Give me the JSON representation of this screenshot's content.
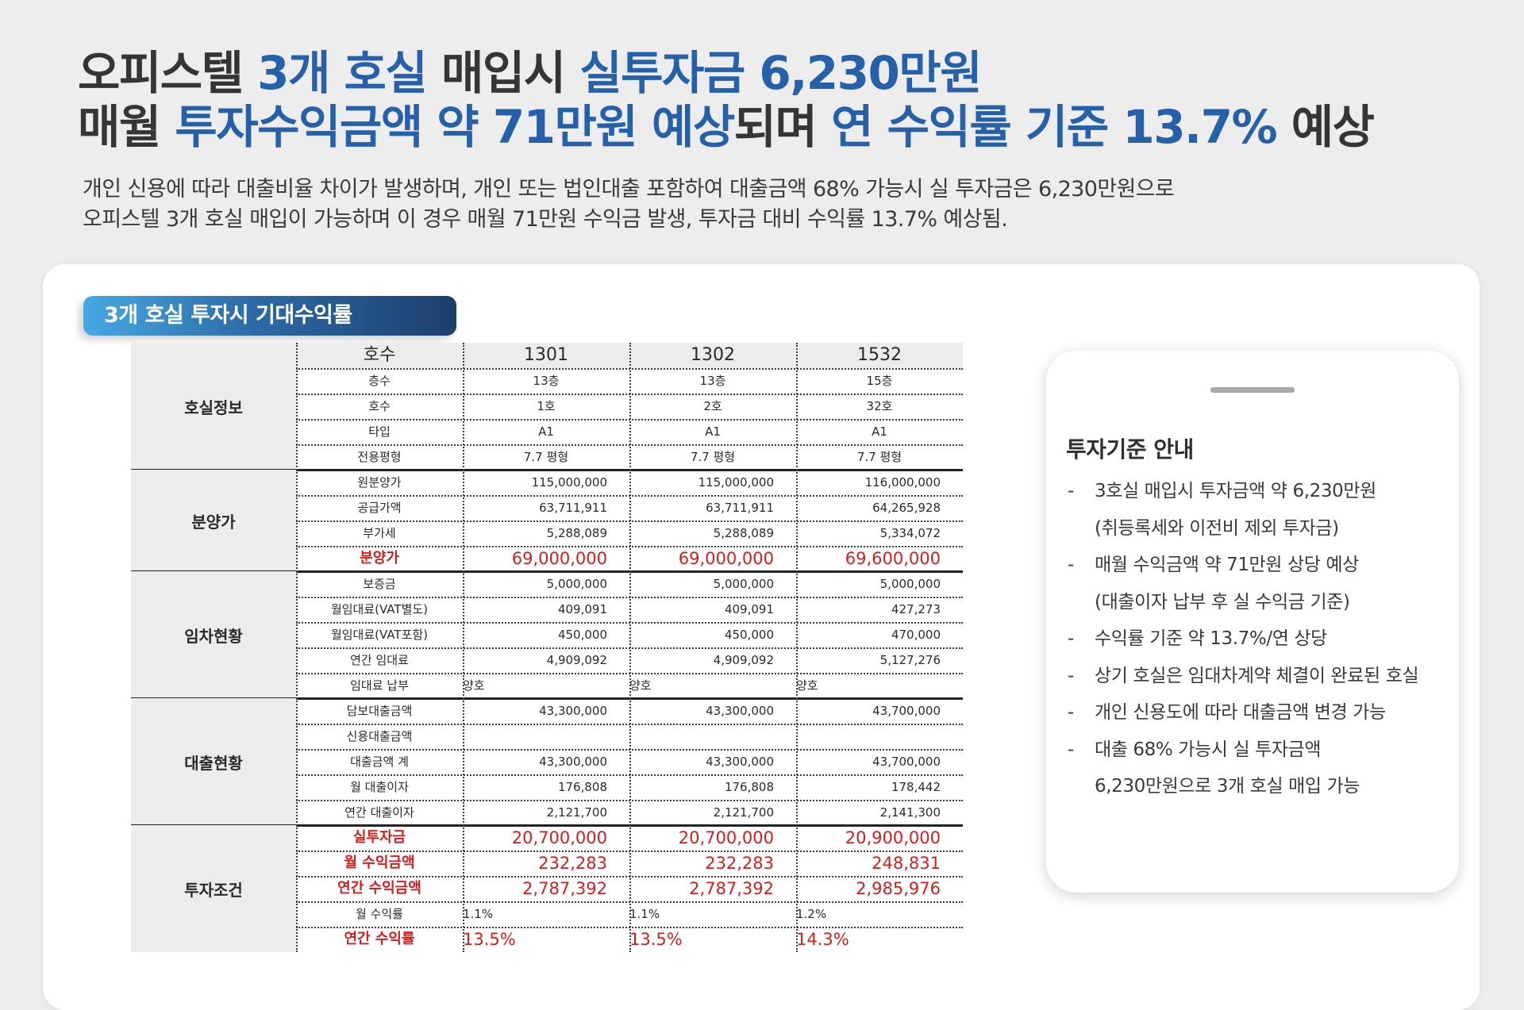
{
  "headline": {
    "line1": [
      {
        "text": "오피스텔 ",
        "blue": false
      },
      {
        "text": "3개 호실",
        "blue": true
      },
      {
        "text": " 매입시 ",
        "blue": false
      },
      {
        "text": "실투자금 6,230만원",
        "blue": true
      }
    ],
    "line2": [
      {
        "text": "매월 ",
        "blue": false
      },
      {
        "text": "투자수익금액 약 71만원 예상",
        "blue": true
      },
      {
        "text": "되며 ",
        "blue": false
      },
      {
        "text": "연 수익률 기준 13.7%",
        "blue": true
      },
      {
        "text": " 예상",
        "blue": false
      }
    ]
  },
  "subtitle": {
    "line1": "개인 신용에 따라 대출비율 차이가 발생하며, 개인 또는 법인대출 포함하여 대출금액 68% 가능시 실 투자금은 6,230만원으로",
    "line2": "오피스텔 3개 호실 매입이 가능하며 이 경우 매월 71만원 수익금 발생, 투자금 대비 수익률 13.7% 예상됨."
  },
  "section_title": "3개 호실 투자시 기대수익률",
  "table": {
    "header": {
      "label": "호수",
      "units": [
        "1301",
        "1302",
        "1532"
      ]
    },
    "groups": [
      {
        "name": "호실정보",
        "rows": [
          {
            "label": "층수",
            "values": [
              "13층",
              "13층",
              "15층"
            ],
            "align": "center"
          },
          {
            "label": "호수",
            "values": [
              "1호",
              "2호",
              "32호"
            ],
            "align": "center"
          },
          {
            "label": "타입",
            "values": [
              "A1",
              "A1",
              "A1"
            ],
            "align": "center"
          },
          {
            "label": "전용평형",
            "values": [
              "7.7 평형",
              "7.7 평형",
              "7.7 평형"
            ],
            "align": "center"
          }
        ]
      },
      {
        "name": "분양가",
        "rows": [
          {
            "label": "원분양가",
            "values": [
              "115,000,000",
              "115,000,000",
              "116,000,000"
            ],
            "align": "right"
          },
          {
            "label": "공급가액",
            "values": [
              "63,711,911",
              "63,711,911",
              "64,265,928"
            ],
            "align": "right"
          },
          {
            "label": "부가세",
            "values": [
              "5,288,089",
              "5,288,089",
              "5,334,072"
            ],
            "align": "right"
          },
          {
            "label": "분양가",
            "values": [
              "69,000,000",
              "69,000,000",
              "69,600,000"
            ],
            "align": "right",
            "highlight": true
          }
        ]
      },
      {
        "name": "임차현황",
        "rows": [
          {
            "label": "보증금",
            "values": [
              "5,000,000",
              "5,000,000",
              "5,000,000"
            ],
            "align": "right"
          },
          {
            "label": "월임대료(VAT별도)",
            "values": [
              "409,091",
              "409,091",
              "427,273"
            ],
            "align": "right"
          },
          {
            "label": "월임대료(VAT포함)",
            "values": [
              "450,000",
              "450,000",
              "470,000"
            ],
            "align": "right"
          },
          {
            "label": "연간 임대료",
            "values": [
              "4,909,092",
              "4,909,092",
              "5,127,276"
            ],
            "align": "right"
          },
          {
            "label": "임대료 납부",
            "values": [
              "양호",
              "양호",
              "양호"
            ],
            "align": "left"
          }
        ]
      },
      {
        "name": "대출현황",
        "rows": [
          {
            "label": "담보대출금액",
            "values": [
              "43,300,000",
              "43,300,000",
              "43,700,000"
            ],
            "align": "right"
          },
          {
            "label": "신용대출금액",
            "values": [
              "",
              "",
              ""
            ],
            "align": "right"
          },
          {
            "label": "대출금액 계",
            "values": [
              "43,300,000",
              "43,300,000",
              "43,700,000"
            ],
            "align": "right"
          },
          {
            "label": "월 대출이자",
            "values": [
              "176,808",
              "176,808",
              "178,442"
            ],
            "align": "right"
          },
          {
            "label": "연간 대출이자",
            "values": [
              "2,121,700",
              "2,121,700",
              "2,141,300"
            ],
            "align": "right"
          }
        ]
      },
      {
        "name": "투자조건",
        "rows": [
          {
            "label": "실투자금",
            "values": [
              "20,700,000",
              "20,700,000",
              "20,900,000"
            ],
            "align": "right",
            "highlight": true
          },
          {
            "label": "월 수익금액",
            "values": [
              "232,283",
              "232,283",
              "248,831"
            ],
            "align": "right",
            "highlight": true
          },
          {
            "label": "연간 수익금액",
            "values": [
              "2,787,392",
              "2,787,392",
              "2,985,976"
            ],
            "align": "right",
            "highlight": true
          },
          {
            "label": "월 수익률",
            "values": [
              "1.1%",
              "1.1%",
              "1.2%"
            ],
            "align": "left"
          },
          {
            "label": "연간 수익률",
            "values": [
              "13.5%",
              "13.5%",
              "14.3%"
            ],
            "align": "left",
            "highlight": true
          }
        ]
      }
    ]
  },
  "info_card": {
    "title": "투자기준 안내",
    "bullets": [
      {
        "lines": [
          "3호실 매입시 투자금액 약 6,230만원",
          "(취등록세와 이전비 제외 투자금)"
        ]
      },
      {
        "lines": [
          "매월 수익금액 약 71만원 상당 예상",
          "(대출이자 납부 후 실 수익금 기준)"
        ]
      },
      {
        "lines": [
          "수익률 기준 약 13.7%/연 상당"
        ]
      },
      {
        "lines": [
          "상기 호실은 임대차계약 체결이 완료된 호실"
        ]
      },
      {
        "lines": [
          "개인 신용도에 따라 대출금액 변경 가능"
        ]
      },
      {
        "lines": [
          "대출 68% 가능시 실 투자금액",
          "6,230만원으로 3개 호실 매입 가능"
        ]
      }
    ]
  },
  "colors": {
    "accent_blue": "#2660a8",
    "highlight_red": "#d01f1f",
    "label_gradient": [
      "#47a8e3",
      "#1d3f6c"
    ]
  }
}
